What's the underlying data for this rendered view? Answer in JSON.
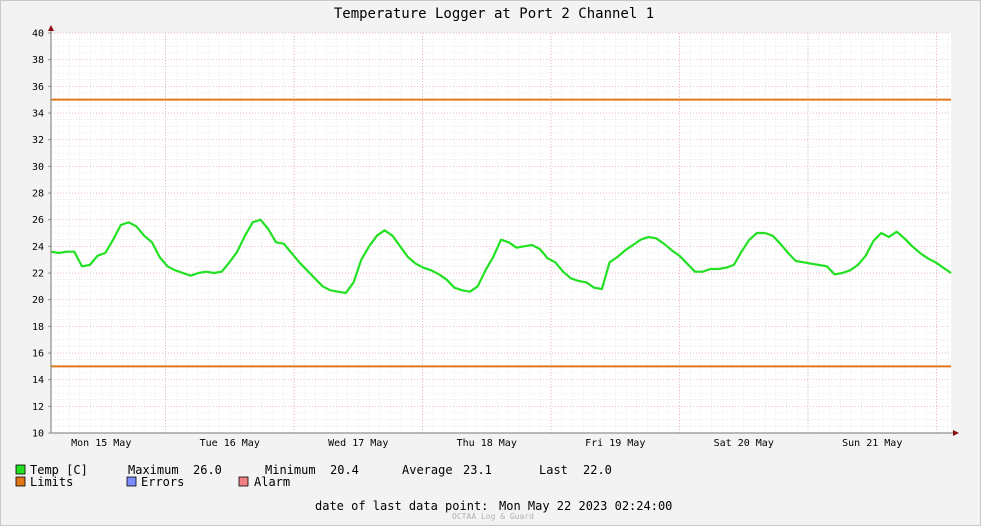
{
  "chart_data": {
    "type": "line",
    "title": "Temperature Logger at Port 2 Channel 1",
    "ylim": [
      10,
      40
    ],
    "yticks": [
      10,
      12,
      14,
      16,
      18,
      20,
      22,
      24,
      26,
      28,
      30,
      32,
      34,
      36,
      38,
      40
    ],
    "x_tick_labels": [
      "Mon 15 May",
      "Tue 16 May",
      "Wed 17 May",
      "Thu 18 May",
      "Fri 19 May",
      "Sat 20 May",
      "Sun 21 May"
    ],
    "grid": true,
    "limits": {
      "upper": 35,
      "lower": 15,
      "color": "#e0781a"
    },
    "series": [
      {
        "name": "Temp [C]",
        "color": "#22e022",
        "values": [
          23.6,
          23.5,
          23.6,
          23.6,
          22.5,
          22.6,
          23.3,
          23.5,
          24.5,
          25.6,
          25.8,
          25.5,
          24.8,
          24.3,
          23.2,
          22.5,
          22.2,
          22.0,
          21.8,
          22.0,
          22.1,
          22.0,
          22.1,
          22.8,
          23.6,
          24.8,
          25.8,
          26.0,
          25.3,
          24.3,
          24.2,
          23.5,
          22.8,
          22.2,
          21.6,
          21.0,
          20.7,
          20.6,
          20.5,
          21.3,
          23.0,
          24.0,
          24.8,
          25.2,
          24.8,
          24.0,
          23.2,
          22.7,
          22.4,
          22.2,
          21.9,
          21.5,
          20.9,
          20.7,
          20.6,
          21.0,
          22.2,
          23.2,
          24.5,
          24.3,
          23.9,
          24.0,
          24.1,
          23.8,
          23.1,
          22.8,
          22.1,
          21.6,
          21.4,
          21.3,
          20.9,
          20.8,
          22.8,
          23.2,
          23.7,
          24.1,
          24.5,
          24.7,
          24.6,
          24.2,
          23.7,
          23.3,
          22.7,
          22.1,
          22.1,
          22.3,
          22.3,
          22.4,
          22.6,
          23.6,
          24.5,
          25.0,
          25.0,
          24.8,
          24.2,
          23.5,
          22.9,
          22.8,
          22.7,
          22.6,
          22.5,
          21.9,
          22.0,
          22.2,
          22.6,
          23.3,
          24.4,
          25.0,
          24.7,
          25.1,
          24.6,
          24.0,
          23.5,
          23.1,
          22.8,
          22.4,
          22.0
        ]
      }
    ]
  },
  "legend": {
    "temp_label": "Temp [C]",
    "max_label": "Maximum",
    "max_value": "26.0",
    "min_label": "Minimum",
    "min_value": "20.4",
    "avg_label": "Average",
    "avg_value": "23.1",
    "last_label": "Last",
    "last_value": "22.0",
    "limits_label": "Limits",
    "errors_label": "Errors",
    "alarm_label": "Alarm",
    "temp_color": "#22e022",
    "limits_color": "#e0781a",
    "errors_color": "#7a8cff",
    "alarm_color": "#f08080"
  },
  "footer": {
    "last_point_label": "date of last data point:",
    "last_point_value": "Mon May 22 2023 02:24:00",
    "brand": "OCTAA Log & Guard"
  }
}
